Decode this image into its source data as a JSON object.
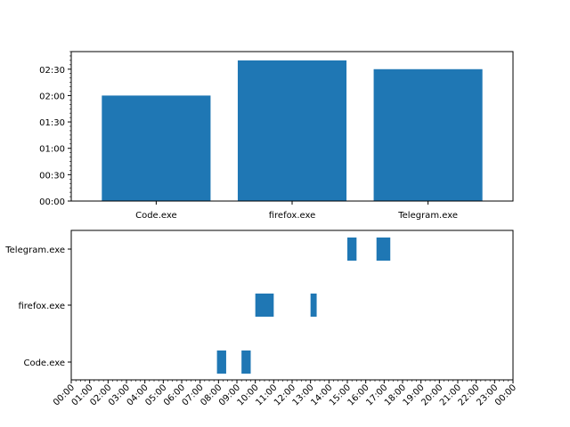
{
  "colors": {
    "bar": "#1f77b4",
    "axis": "#000000",
    "background": "#ffffff"
  },
  "chart_data": [
    {
      "type": "bar",
      "title": "",
      "xlabel": "",
      "ylabel": "",
      "categories": [
        "Code.exe",
        "firefox.exe",
        "Telegram.exe"
      ],
      "values_minutes": [
        120,
        160,
        150
      ],
      "ylim_minutes": [
        0,
        170
      ],
      "y_ticks": [
        "00:00",
        "00:30",
        "01:00",
        "01:30",
        "02:00",
        "02:30"
      ],
      "y_tick_values_minutes": [
        0,
        30,
        60,
        90,
        120,
        150
      ],
      "grid": false
    },
    {
      "type": "timeline",
      "title": "",
      "xlabel": "",
      "ylabel": "",
      "categories": [
        "Code.exe",
        "firefox.exe",
        "Telegram.exe"
      ],
      "intervals": [
        {
          "app": "Code.exe",
          "start": "07:55",
          "end": "08:25"
        },
        {
          "app": "Code.exe",
          "start": "09:15",
          "end": "09:45"
        },
        {
          "app": "firefox.exe",
          "start": "10:00",
          "end": "11:00"
        },
        {
          "app": "firefox.exe",
          "start": "13:00",
          "end": "13:20"
        },
        {
          "app": "Telegram.exe",
          "start": "15:00",
          "end": "15:30"
        },
        {
          "app": "Telegram.exe",
          "start": "16:35",
          "end": "17:20"
        }
      ],
      "x_ticks": [
        "00:00",
        "01:00",
        "02:00",
        "03:00",
        "04:00",
        "05:00",
        "06:00",
        "07:00",
        "08:00",
        "09:00",
        "10:00",
        "11:00",
        "12:00",
        "13:00",
        "14:00",
        "15:00",
        "16:00",
        "17:00",
        "18:00",
        "19:00",
        "20:00",
        "21:00",
        "22:00",
        "23:00",
        "00:00"
      ],
      "xlim": [
        "00:00",
        "24:00"
      ],
      "grid": false
    }
  ]
}
